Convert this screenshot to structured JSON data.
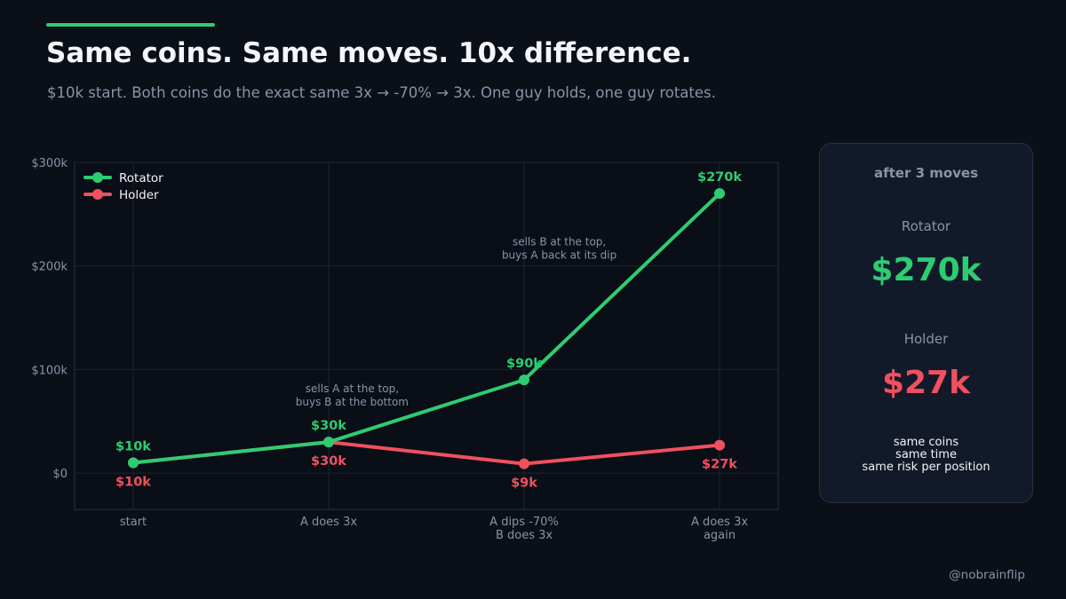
{
  "colors": {
    "background": "#0b0f17",
    "rotator": "#2ecc71",
    "holder": "#f0505f",
    "muted": "#8a93a8",
    "grid": "#1c2536"
  },
  "header": {
    "title": "Same coins. Same moves. 10x difference.",
    "subtitle": "$10k start. Both coins do the exact same 3x → -70% → 3x. One guy holds, one guy rotates."
  },
  "chart_data": {
    "type": "line",
    "categories": [
      [
        "start"
      ],
      [
        "A does 3x"
      ],
      [
        "A dips -70%",
        "B does 3x"
      ],
      [
        "A does 3x",
        "again"
      ]
    ],
    "series": [
      {
        "name": "Rotator",
        "color": "#2ecc71",
        "values": [
          10,
          30,
          90,
          270
        ],
        "labels": [
          "$10k",
          "$30k",
          "$90k",
          "$270k"
        ],
        "label_pos": "above"
      },
      {
        "name": "Holder",
        "color": "#f0505f",
        "values": [
          10,
          30,
          9,
          27
        ],
        "labels": [
          "$10k",
          "$30k",
          "$9k",
          "$27k"
        ],
        "label_pos": "below"
      }
    ],
    "yunit": "thousand USD",
    "ylim": [
      -35,
      300
    ],
    "yticks": [
      0,
      100,
      200,
      300
    ],
    "ytick_labels": [
      "$0",
      "$100k",
      "$200k",
      "$300k"
    ],
    "grid": true,
    "legend": "top-left",
    "annotations": [
      {
        "x": 1.12,
        "y": 78,
        "lines": [
          "sells A at the top,",
          "buys B at the bottom"
        ]
      },
      {
        "x": 2.18,
        "y": 220,
        "lines": [
          "sells B at the top,",
          "buys A back at its dip"
        ]
      }
    ]
  },
  "panel": {
    "heading": "after 3 moves",
    "rotator_label": "Rotator",
    "rotator_value": "$270k",
    "holder_label": "Holder",
    "holder_value": "$27k",
    "notes": [
      "same coins",
      "same time",
      "same risk per position"
    ]
  },
  "footer": {
    "handle": "@nobrainflip"
  }
}
